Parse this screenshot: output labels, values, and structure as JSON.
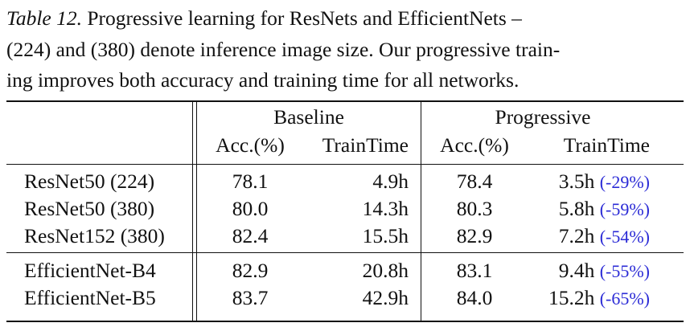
{
  "caption": {
    "label": "Table 12.",
    "lines": [
      " Progressive learning for ResNets and EfficientNets –",
      "(224) and (380) denote inference image size. Our progressive train-",
      "ing improves both accuracy and training time for all networks."
    ]
  },
  "table": {
    "groups": [
      "Baseline",
      "Progressive"
    ],
    "columns": [
      "Acc.(%)",
      "TrainTime",
      "Acc.(%)",
      "TrainTime"
    ],
    "rows": [
      {
        "model": "ResNet50 (224)",
        "base_acc": "78.1",
        "base_time": "4.9h",
        "prog_acc": "78.4",
        "prog_time": "3.5h",
        "delta": "(-29%)"
      },
      {
        "model": "ResNet50 (380)",
        "base_acc": "80.0",
        "base_time": "14.3h",
        "prog_acc": "80.3",
        "prog_time": "5.8h",
        "delta": "(-59%)"
      },
      {
        "model": "ResNet152 (380)",
        "base_acc": "82.4",
        "base_time": "15.5h",
        "prog_acc": "82.9",
        "prog_time": "7.2h",
        "delta": "(-54%)"
      },
      {
        "model": "EfficientNet-B4",
        "base_acc": "82.9",
        "base_time": "20.8h",
        "prog_acc": "83.1",
        "prog_time": "9.4h",
        "delta": "(-55%)"
      },
      {
        "model": "EfficientNet-B5",
        "base_acc": "83.7",
        "base_time": "42.9h",
        "prog_acc": "84.0",
        "prog_time": "15.2h",
        "delta": "(-65%)"
      }
    ]
  }
}
